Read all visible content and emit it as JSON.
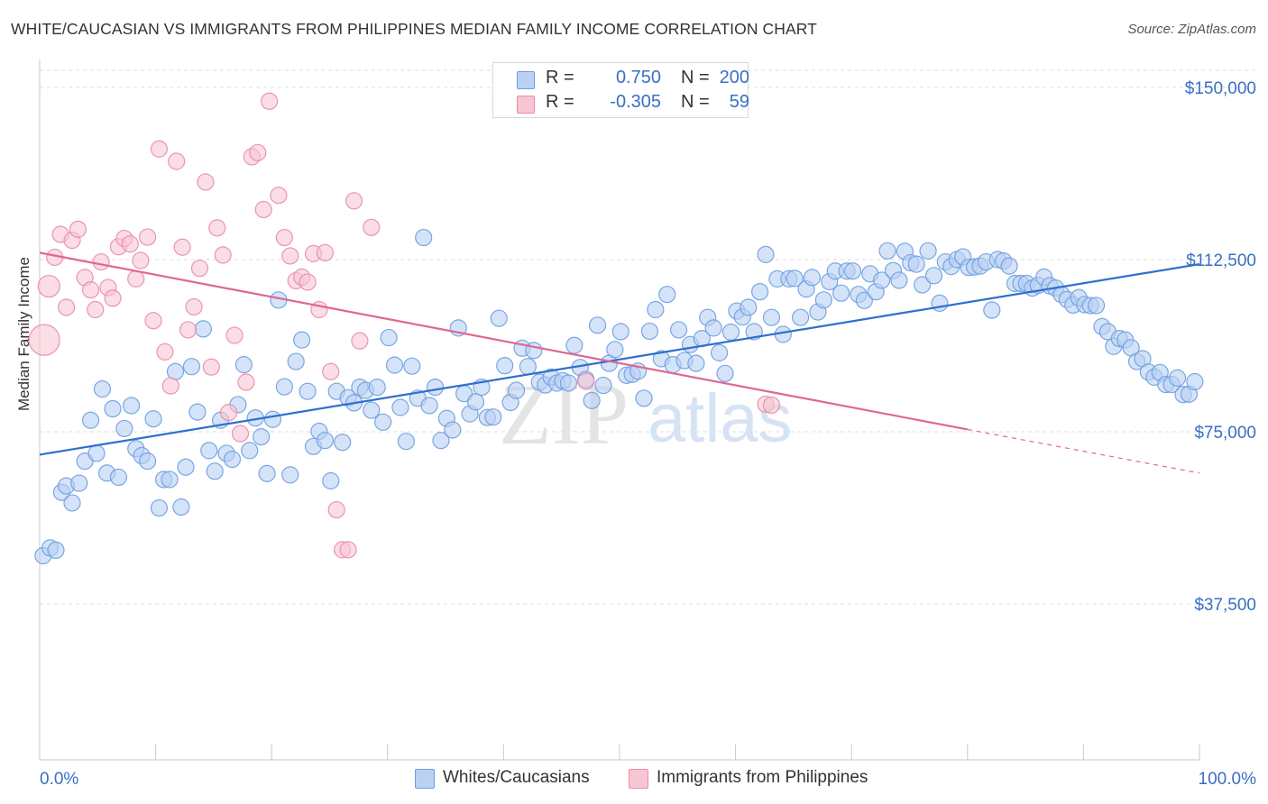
{
  "header": {
    "title": "WHITE/CAUCASIAN VS IMMIGRANTS FROM PHILIPPINES MEDIAN FAMILY INCOME CORRELATION CHART",
    "source": "Source: ZipAtlas.com"
  },
  "legend": {
    "series": [
      {
        "r_label": "R =",
        "r_value": "0.750",
        "n_label": "N =",
        "n_value": "200"
      },
      {
        "r_label": "R =",
        "r_value": "-0.305",
        "n_label": "N =",
        "n_value": "59"
      }
    ]
  },
  "bottom_legend": [
    "Whites/Caucasians",
    "Immigrants from Philippines"
  ],
  "watermark": {
    "zip": "ZIP",
    "atlas": "atlas"
  },
  "colors": {
    "blue_fill": "#b9d1f3",
    "blue_stroke": "#6d9de0",
    "blue_line": "#2f6fcf",
    "pink_fill": "#f7c6d3",
    "pink_stroke": "#e98ba8",
    "pink_line": "#e06791",
    "axis_label": "#3a6fc4",
    "grid": "#dcdcdc"
  },
  "chart_data": {
    "type": "scatter",
    "title": "WHITE/CAUCASIAN VS IMMIGRANTS FROM PHILIPPINES MEDIAN FAMILY INCOME CORRELATION CHART",
    "xlabel": "",
    "ylabel": "Median Family Income",
    "xlim": [
      0,
      100
    ],
    "ylim": [
      15000,
      153000
    ],
    "x_tick_labels": [
      "0.0%",
      "100.0%"
    ],
    "y_ticks": [
      37500,
      75000,
      112500,
      150000
    ],
    "y_tick_labels": [
      "$37,500",
      "$75,000",
      "$112,500",
      "$150,000"
    ],
    "grid": true,
    "legend_position": "top-center",
    "series": [
      {
        "name": "Whites/Caucasians",
        "color": "#6d9de0",
        "trend": {
          "x": [
            0,
            100
          ],
          "y": [
            70000,
            111500
          ]
        },
        "points": [
          [
            0.3,
            48000
          ],
          [
            0.9,
            49700
          ],
          [
            1.4,
            49200
          ],
          [
            1.9,
            61800
          ],
          [
            2.3,
            63200
          ],
          [
            2.8,
            59500
          ],
          [
            3.4,
            63800
          ],
          [
            3.9,
            68600
          ],
          [
            4.4,
            77500
          ],
          [
            4.9,
            70300
          ],
          [
            5.4,
            84300
          ],
          [
            5.8,
            66000
          ],
          [
            6.3,
            80000
          ],
          [
            6.8,
            65100
          ],
          [
            7.3,
            75700
          ],
          [
            7.9,
            80700
          ],
          [
            8.3,
            71300
          ],
          [
            8.8,
            69800
          ],
          [
            9.3,
            68600
          ],
          [
            9.8,
            77800
          ],
          [
            10.3,
            58400
          ],
          [
            10.7,
            64600
          ],
          [
            11.2,
            64600
          ],
          [
            11.7,
            88100
          ],
          [
            12.2,
            58600
          ],
          [
            12.6,
            67300
          ],
          [
            13.1,
            89200
          ],
          [
            13.6,
            79300
          ],
          [
            14.1,
            97400
          ],
          [
            14.6,
            70900
          ],
          [
            15.1,
            66400
          ],
          [
            15.6,
            77500
          ],
          [
            16.1,
            70300
          ],
          [
            16.6,
            69000
          ],
          [
            17.1,
            80900
          ],
          [
            17.6,
            89600
          ],
          [
            18.1,
            70900
          ],
          [
            18.6,
            78000
          ],
          [
            19.1,
            73900
          ],
          [
            19.6,
            65900
          ],
          [
            20.1,
            77700
          ],
          [
            20.6,
            103700
          ],
          [
            21.1,
            84800
          ],
          [
            21.6,
            65600
          ],
          [
            22.1,
            90300
          ],
          [
            22.6,
            95000
          ],
          [
            23.1,
            83800
          ],
          [
            23.6,
            71800
          ],
          [
            24.1,
            75100
          ],
          [
            24.6,
            73100
          ],
          [
            25.1,
            64300
          ],
          [
            25.6,
            83800
          ],
          [
            26.1,
            72700
          ],
          [
            26.6,
            82400
          ],
          [
            27.1,
            81300
          ],
          [
            27.6,
            84700
          ],
          [
            28.1,
            84000
          ],
          [
            28.6,
            79700
          ],
          [
            29.1,
            84700
          ],
          [
            29.6,
            77100
          ],
          [
            30.1,
            95500
          ],
          [
            30.6,
            89500
          ],
          [
            31.1,
            80300
          ],
          [
            31.6,
            72900
          ],
          [
            32.1,
            89300
          ],
          [
            32.6,
            82300
          ],
          [
            33.1,
            117300
          ],
          [
            33.6,
            80700
          ],
          [
            34.1,
            84700
          ],
          [
            34.6,
            73100
          ],
          [
            35.1,
            77900
          ],
          [
            35.6,
            75400
          ],
          [
            36.1,
            97600
          ],
          [
            36.6,
            83300
          ],
          [
            37.1,
            78900
          ],
          [
            37.6,
            81500
          ],
          [
            38.1,
            84700
          ],
          [
            38.6,
            78100
          ],
          [
            39.1,
            78200
          ],
          [
            39.6,
            99700
          ],
          [
            40.1,
            89400
          ],
          [
            40.6,
            81400
          ],
          [
            41.1,
            84000
          ],
          [
            41.6,
            93200
          ],
          [
            42.1,
            89200
          ],
          [
            42.6,
            92700
          ],
          [
            43.1,
            85800
          ],
          [
            43.6,
            85200
          ],
          [
            44.1,
            86900
          ],
          [
            44.6,
            85600
          ],
          [
            45.1,
            86100
          ],
          [
            45.6,
            85600
          ],
          [
            46.1,
            93800
          ],
          [
            46.6,
            89000
          ],
          [
            47.1,
            86400
          ],
          [
            47.6,
            81800
          ],
          [
            48.1,
            98200
          ],
          [
            48.6,
            85100
          ],
          [
            49.1,
            89900
          ],
          [
            49.6,
            92900
          ],
          [
            50.1,
            96800
          ],
          [
            50.6,
            87300
          ],
          [
            51.1,
            87500
          ],
          [
            51.6,
            88200
          ],
          [
            52.1,
            82300
          ],
          [
            52.6,
            96900
          ],
          [
            53.1,
            101600
          ],
          [
            53.6,
            90900
          ],
          [
            54.1,
            104900
          ],
          [
            54.6,
            89600
          ],
          [
            55.1,
            97200
          ],
          [
            55.6,
            90500
          ],
          [
            56.1,
            94000
          ],
          [
            56.6,
            89900
          ],
          [
            57.1,
            95300
          ],
          [
            57.6,
            99900
          ],
          [
            58.1,
            97600
          ],
          [
            58.6,
            92200
          ],
          [
            59.1,
            87700
          ],
          [
            59.6,
            96700
          ],
          [
            60.1,
            101300
          ],
          [
            60.6,
            100000
          ],
          [
            61.1,
            102100
          ],
          [
            61.6,
            96800
          ],
          [
            62.1,
            105500
          ],
          [
            62.6,
            113600
          ],
          [
            63.1,
            99900
          ],
          [
            63.6,
            108300
          ],
          [
            64.1,
            96200
          ],
          [
            64.6,
            108300
          ],
          [
            65.1,
            108400
          ],
          [
            65.6,
            99900
          ],
          [
            66.1,
            106100
          ],
          [
            66.6,
            108600
          ],
          [
            67.1,
            101100
          ],
          [
            67.6,
            103700
          ],
          [
            68.1,
            107700
          ],
          [
            68.6,
            110000
          ],
          [
            69.1,
            105200
          ],
          [
            69.6,
            110000
          ],
          [
            70.1,
            110000
          ],
          [
            70.6,
            104900
          ],
          [
            71.1,
            103600
          ],
          [
            71.6,
            109400
          ],
          [
            72.1,
            105500
          ],
          [
            72.6,
            108000
          ],
          [
            73.1,
            114400
          ],
          [
            73.6,
            110100
          ],
          [
            74.1,
            108000
          ],
          [
            74.6,
            114300
          ],
          [
            75.1,
            111800
          ],
          [
            75.6,
            111500
          ],
          [
            76.1,
            107000
          ],
          [
            76.6,
            114400
          ],
          [
            77.1,
            109000
          ],
          [
            77.6,
            103000
          ],
          [
            78.1,
            112000
          ],
          [
            78.6,
            111000
          ],
          [
            79.1,
            112500
          ],
          [
            79.6,
            113100
          ],
          [
            80.1,
            110800
          ],
          [
            80.6,
            110900
          ],
          [
            81.1,
            111100
          ],
          [
            81.6,
            112000
          ],
          [
            82.1,
            101500
          ],
          [
            82.6,
            112500
          ],
          [
            83.1,
            112200
          ],
          [
            83.6,
            111100
          ],
          [
            84.1,
            107300
          ],
          [
            84.6,
            107300
          ],
          [
            85.1,
            107300
          ],
          [
            85.6,
            106300
          ],
          [
            86.1,
            106900
          ],
          [
            86.6,
            108700
          ],
          [
            87.1,
            106800
          ],
          [
            87.6,
            106300
          ],
          [
            88.1,
            104900
          ],
          [
            88.6,
            103800
          ],
          [
            89.1,
            102600
          ],
          [
            89.6,
            104200
          ],
          [
            90.1,
            102700
          ],
          [
            90.6,
            102500
          ],
          [
            91.1,
            102500
          ],
          [
            91.6,
            97900
          ],
          [
            92.1,
            96800
          ],
          [
            92.6,
            93600
          ],
          [
            93.1,
            95300
          ],
          [
            93.6,
            95000
          ],
          [
            94.1,
            93300
          ],
          [
            94.6,
            90300
          ],
          [
            95.1,
            90900
          ],
          [
            95.6,
            88000
          ],
          [
            96.1,
            86900
          ],
          [
            96.6,
            87900
          ],
          [
            97.1,
            85300
          ],
          [
            97.6,
            85300
          ],
          [
            98.1,
            86700
          ],
          [
            98.6,
            83100
          ],
          [
            99.1,
            83200
          ],
          [
            99.6,
            85900
          ]
        ]
      },
      {
        "name": "Immigrants from Philippines",
        "color": "#e98ba8",
        "trend": {
          "x": [
            0,
            80
          ],
          "y": [
            114000,
            75500
          ],
          "dashed_extension": {
            "x": [
              80,
              100
            ],
            "y": [
              75500,
              66000
            ]
          }
        },
        "points": [
          [
            0.4,
            95000
          ],
          [
            0.8,
            106700
          ],
          [
            1.3,
            113000
          ],
          [
            1.8,
            118000
          ],
          [
            2.3,
            102100
          ],
          [
            2.8,
            116700
          ],
          [
            3.3,
            119100
          ],
          [
            3.9,
            108600
          ],
          [
            4.4,
            105900
          ],
          [
            4.8,
            101600
          ],
          [
            5.3,
            112000
          ],
          [
            5.9,
            106400
          ],
          [
            6.3,
            104100
          ],
          [
            6.8,
            115300
          ],
          [
            7.3,
            117100
          ],
          [
            7.8,
            115900
          ],
          [
            8.3,
            108300
          ],
          [
            8.7,
            112300
          ],
          [
            9.3,
            117400
          ],
          [
            9.8,
            99200
          ],
          [
            10.3,
            136600
          ],
          [
            10.8,
            92400
          ],
          [
            11.3,
            85000
          ],
          [
            11.8,
            133900
          ],
          [
            12.3,
            115200
          ],
          [
            12.8,
            97200
          ],
          [
            13.3,
            102200
          ],
          [
            13.8,
            110600
          ],
          [
            14.3,
            129400
          ],
          [
            14.8,
            89100
          ],
          [
            15.3,
            119400
          ],
          [
            15.8,
            113500
          ],
          [
            16.3,
            79200
          ],
          [
            16.8,
            96000
          ],
          [
            17.3,
            74600
          ],
          [
            17.8,
            85800
          ],
          [
            18.3,
            134900
          ],
          [
            18.8,
            135800
          ],
          [
            19.3,
            123400
          ],
          [
            19.8,
            147000
          ],
          [
            20.6,
            126500
          ],
          [
            21.1,
            117300
          ],
          [
            21.6,
            113300
          ],
          [
            22.1,
            107900
          ],
          [
            22.6,
            108700
          ],
          [
            23.1,
            107600
          ],
          [
            23.6,
            113800
          ],
          [
            24.1,
            101600
          ],
          [
            24.6,
            114000
          ],
          [
            25.1,
            88100
          ],
          [
            25.6,
            58000
          ],
          [
            26.1,
            49300
          ],
          [
            26.6,
            49300
          ],
          [
            27.1,
            125300
          ],
          [
            27.6,
            94800
          ],
          [
            28.6,
            119500
          ],
          [
            47.1,
            86000
          ],
          [
            62.6,
            81000
          ],
          [
            63.1,
            80800
          ]
        ]
      }
    ]
  }
}
